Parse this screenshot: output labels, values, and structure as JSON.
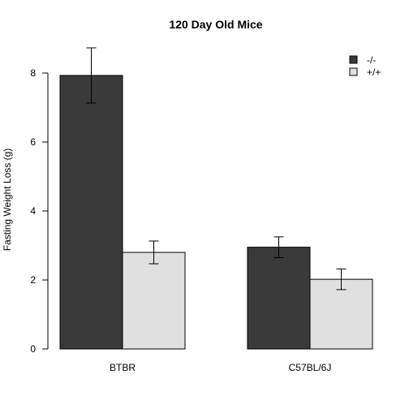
{
  "chart_data": {
    "type": "bar",
    "title": "120 Day Old Mice",
    "xlabel": "",
    "ylabel": "Fasting Weight Loss (g)",
    "categories": [
      "BTBR",
      "C57BL/6J"
    ],
    "series": [
      {
        "name": "-/-",
        "color": "#3a3a3a",
        "values": [
          7.93,
          2.95
        ],
        "error": [
          0.8,
          0.3
        ]
      },
      {
        "name": "+/+",
        "color": "#e0e0e0",
        "values": [
          2.8,
          2.02
        ],
        "error": [
          0.33,
          0.3
        ]
      }
    ],
    "yticks": [
      0,
      2,
      4,
      6,
      8
    ],
    "ylim": [
      0,
      8.75
    ],
    "legend_position": "top-right",
    "grid": false
  }
}
